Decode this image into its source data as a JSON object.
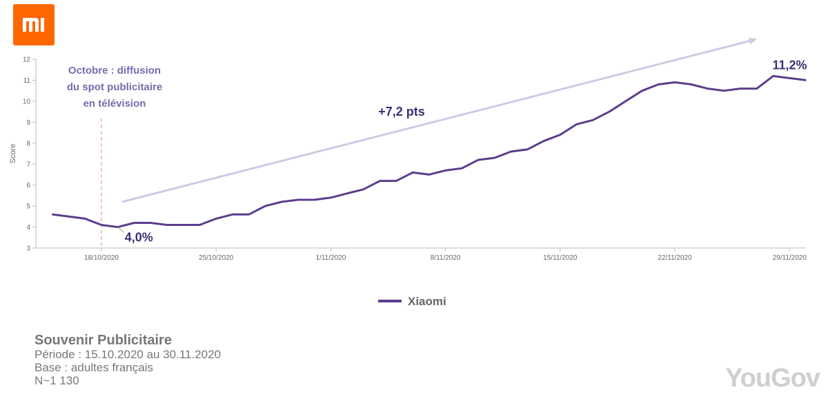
{
  "brand": {
    "logo_text": "mi",
    "color": "#ff6700"
  },
  "chart_data": {
    "type": "line",
    "ylabel": "Score",
    "ylim": [
      3,
      12
    ],
    "yticks": [
      3,
      4,
      5,
      6,
      7,
      8,
      9,
      10,
      11,
      12
    ],
    "xlim": [
      "2020-10-14",
      "2020-11-30"
    ],
    "xticks": [
      {
        "date": "2020-10-18",
        "label": "18/10/2020"
      },
      {
        "date": "2020-10-25",
        "label": "25/10/2020"
      },
      {
        "date": "2020-11-01",
        "label": "1/11/2020"
      },
      {
        "date": "2020-11-08",
        "label": "8/11/2020"
      },
      {
        "date": "2020-11-15",
        "label": "15/11/2020"
      },
      {
        "date": "2020-11-22",
        "label": "22/11/2020"
      },
      {
        "date": "2020-11-29",
        "label": "29/11/2020"
      }
    ],
    "series": [
      {
        "name": "Xiaomi",
        "color": "#5c3d8c",
        "x": [
          "2020-10-15",
          "2020-10-16",
          "2020-10-17",
          "2020-10-18",
          "2020-10-19",
          "2020-10-20",
          "2020-10-21",
          "2020-10-22",
          "2020-10-23",
          "2020-10-24",
          "2020-10-25",
          "2020-10-26",
          "2020-10-27",
          "2020-10-28",
          "2020-10-29",
          "2020-10-30",
          "2020-10-31",
          "2020-11-01",
          "2020-11-02",
          "2020-11-03",
          "2020-11-04",
          "2020-11-05",
          "2020-11-06",
          "2020-11-07",
          "2020-11-08",
          "2020-11-09",
          "2020-11-10",
          "2020-11-11",
          "2020-11-12",
          "2020-11-13",
          "2020-11-14",
          "2020-11-15",
          "2020-11-16",
          "2020-11-17",
          "2020-11-18",
          "2020-11-19",
          "2020-11-20",
          "2020-11-21",
          "2020-11-22",
          "2020-11-23",
          "2020-11-24",
          "2020-11-25",
          "2020-11-26",
          "2020-11-27",
          "2020-11-28",
          "2020-11-29",
          "2020-11-30"
        ],
        "y": [
          4.6,
          4.5,
          4.4,
          4.1,
          4.0,
          4.2,
          4.2,
          4.1,
          4.1,
          4.1,
          4.4,
          4.6,
          4.6,
          5.0,
          5.2,
          5.3,
          5.3,
          5.4,
          5.6,
          5.8,
          6.2,
          6.2,
          6.6,
          6.5,
          6.7,
          6.8,
          7.2,
          7.3,
          7.6,
          7.7,
          8.1,
          8.4,
          8.9,
          9.1,
          9.5,
          10.0,
          10.5,
          10.8,
          10.9,
          10.8,
          10.6,
          10.5,
          10.6,
          10.6,
          11.2,
          11.1,
          11.0
        ]
      }
    ],
    "annotations": {
      "event_date": "2020-10-18",
      "event_text": [
        "Octobre : diffusion",
        "du spot publicitaire",
        "en télévision"
      ],
      "start_label": "4,0%",
      "end_label": "11,2%",
      "trend_label": "+7,2 pts"
    },
    "legend": {
      "position": "bottom-center"
    }
  },
  "footer": {
    "title": "Souvenir Publicitaire",
    "period": "Période : 15.10.2020 au 30.11.2020",
    "base": "Base : adultes français",
    "n": "N~1 130"
  },
  "source_brand": "YouGov"
}
